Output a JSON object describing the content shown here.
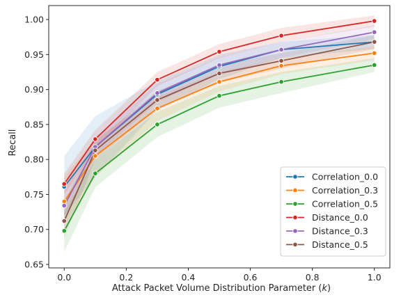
{
  "chart_data": {
    "type": "line",
    "xlabel_prefix": "Attack Packet Volume Distribution Parameter (",
    "xlabel_var": "k",
    "xlabel_suffix": ")",
    "ylabel": "Recall",
    "xlim": [
      -0.05,
      1.05
    ],
    "ylim": [
      0.645,
      1.02
    ],
    "xticks": [
      0.0,
      0.2,
      0.4,
      0.6,
      0.8,
      1.0
    ],
    "xtick_labels": [
      "0.0",
      "0.2",
      "0.4",
      "0.6",
      "0.8",
      "1.0"
    ],
    "yticks": [
      0.65,
      0.7,
      0.75,
      0.8,
      0.85,
      0.9,
      0.95,
      1.0
    ],
    "ytick_labels": [
      "0.65",
      "0.70",
      "0.75",
      "0.80",
      "0.85",
      "0.90",
      "0.95",
      "1.00"
    ],
    "grid": false,
    "legend_position": "lower-right",
    "x": [
      0.0,
      0.1,
      0.3,
      0.5,
      0.7,
      1.0
    ],
    "series": [
      {
        "name": "Correlation_0.0",
        "color": "#1f77b4",
        "values": [
          0.761,
          0.818,
          0.893,
          0.933,
          0.957,
          0.968
        ],
        "lower": [
          0.72,
          0.775,
          0.87,
          0.915,
          0.945,
          0.958
        ],
        "upper": [
          0.805,
          0.862,
          0.912,
          0.95,
          0.968,
          0.978
        ]
      },
      {
        "name": "Correlation_0.3",
        "color": "#ff7f0e",
        "values": [
          0.74,
          0.805,
          0.873,
          0.911,
          0.934,
          0.952
        ],
        "lower": [
          0.705,
          0.775,
          0.855,
          0.897,
          0.922,
          0.942
        ],
        "upper": [
          0.775,
          0.83,
          0.89,
          0.925,
          0.945,
          0.962
        ]
      },
      {
        "name": "Correlation_0.5",
        "color": "#2ca02c",
        "values": [
          0.698,
          0.78,
          0.85,
          0.891,
          0.911,
          0.935
        ],
        "lower": [
          0.668,
          0.76,
          0.832,
          0.874,
          0.895,
          0.925
        ],
        "upper": [
          0.725,
          0.8,
          0.868,
          0.905,
          0.925,
          0.945
        ]
      },
      {
        "name": "Distance_0.0",
        "color": "#d62728",
        "values": [
          0.765,
          0.829,
          0.914,
          0.954,
          0.977,
          0.998
        ],
        "lower": [
          0.75,
          0.815,
          0.905,
          0.945,
          0.968,
          0.99
        ],
        "upper": [
          0.78,
          0.842,
          0.925,
          0.965,
          0.988,
          1.006
        ]
      },
      {
        "name": "Distance_0.3",
        "color": "#9467bd",
        "values": [
          0.734,
          0.818,
          0.895,
          0.935,
          0.957,
          0.982
        ],
        "lower": [
          0.715,
          0.805,
          0.882,
          0.922,
          0.945,
          0.972
        ],
        "upper": [
          0.755,
          0.832,
          0.908,
          0.946,
          0.968,
          0.992
        ]
      },
      {
        "name": "Distance_0.5",
        "color": "#8c564b",
        "values": [
          0.712,
          0.813,
          0.885,
          0.923,
          0.941,
          0.968
        ],
        "lower": [
          0.688,
          0.8,
          0.872,
          0.91,
          0.93,
          0.958
        ],
        "upper": [
          0.74,
          0.826,
          0.898,
          0.935,
          0.952,
          0.978
        ]
      }
    ]
  }
}
